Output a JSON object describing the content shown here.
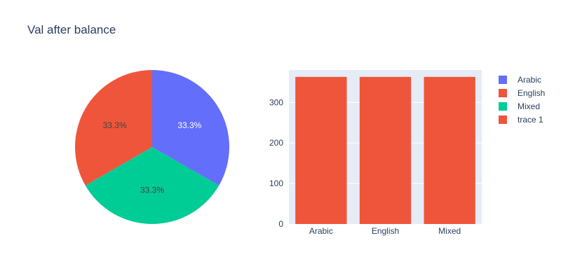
{
  "title": "Val after balance",
  "colors": {
    "Arabic": "#636efa",
    "English": "#EF553B",
    "Mixed": "#00cc96",
    "trace 1": "#EF553B",
    "plot_bg": "#E5ECF6",
    "text": "#2a3f5f"
  },
  "chart_data": [
    {
      "type": "pie",
      "labels": [
        "Arabic",
        "Mixed",
        "English"
      ],
      "values": [
        1,
        1,
        1
      ],
      "percent_labels": [
        "33.3%",
        "33.3%",
        "33.3%"
      ]
    },
    {
      "type": "bar",
      "categories": [
        "Arabic",
        "English",
        "Mixed"
      ],
      "series": [
        {
          "name": "trace 1",
          "values": [
            363,
            363,
            363
          ]
        }
      ],
      "ylim": [
        0,
        380
      ],
      "yticks": [
        0,
        100,
        200,
        300
      ],
      "grid": true
    }
  ],
  "legend": {
    "position": "right",
    "items": [
      "Arabic",
      "English",
      "Mixed",
      "trace 1"
    ]
  }
}
